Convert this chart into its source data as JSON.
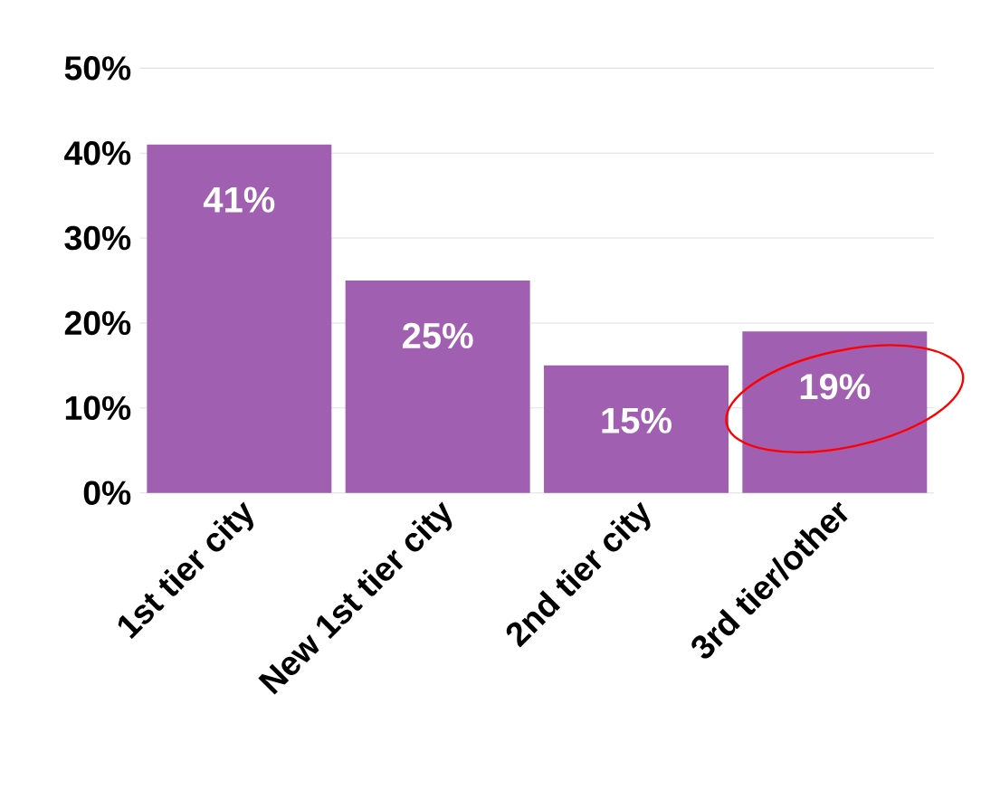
{
  "chart_data": {
    "type": "bar",
    "categories": [
      "1st tier city",
      "New 1st tier city",
      "2nd tier city",
      "3rd tier/other"
    ],
    "values": [
      41,
      25,
      15,
      19
    ],
    "color": "#a05fb0",
    "value_labels": [
      "41%",
      "25%",
      "15%",
      "19%"
    ],
    "ylim": [
      0,
      50
    ],
    "yticks": [
      {
        "value": 0,
        "label": "0%"
      },
      {
        "value": 10,
        "label": "10%"
      },
      {
        "value": 20,
        "label": "20%"
      },
      {
        "value": 30,
        "label": "30%"
      },
      {
        "value": 40,
        "label": "40%"
      },
      {
        "value": 50,
        "label": "50%"
      }
    ],
    "grid": "y"
  }
}
